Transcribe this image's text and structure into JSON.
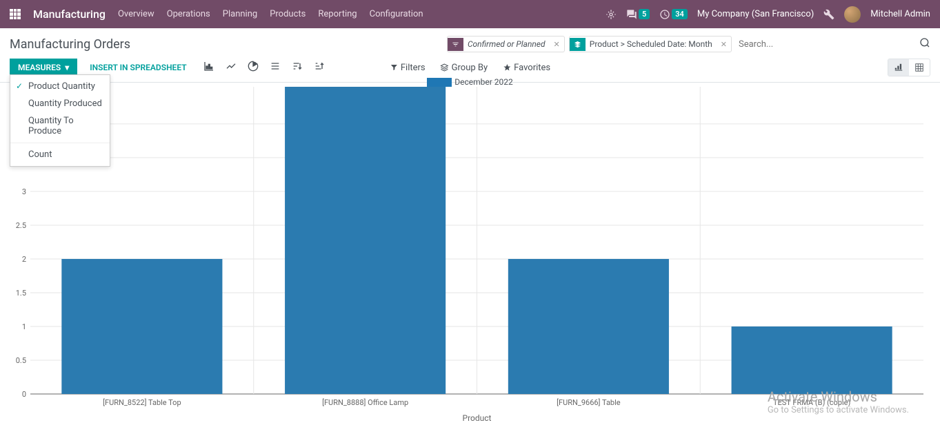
{
  "navbar": {
    "app_title": "Manufacturing",
    "menu": [
      "Overview",
      "Operations",
      "Planning",
      "Products",
      "Reporting",
      "Configuration"
    ],
    "chat_badge": "5",
    "activity_badge": "34",
    "company": "My Company (San Francisco)",
    "user": "Mitchell Admin"
  },
  "page_title": "Manufacturing Orders",
  "search": {
    "facet_filter": "Confirmed or Planned",
    "facet_group": "Product > Scheduled Date: Month",
    "placeholder": "Search..."
  },
  "toolbar": {
    "measures_label": "MEASURES",
    "insert_label": "INSERT IN SPREADSHEET",
    "filters_label": "Filters",
    "groupby_label": "Group By",
    "favorites_label": "Favorites"
  },
  "measures_dropdown": {
    "items": [
      {
        "label": "Product Quantity",
        "checked": true
      },
      {
        "label": "Quantity Produced",
        "checked": false
      },
      {
        "label": "Quantity To Produce",
        "checked": false
      }
    ],
    "count_label": "Count"
  },
  "chart": {
    "type": "bar",
    "legend_label": "December 2022",
    "legend_color": "#1f77b4",
    "bar_color": "#2b7bb0",
    "categories": [
      "[FURN_8522] Table Top",
      "[FURN_8888] Office Lamp",
      "[FURN_9666] Table",
      "TEST FRMA (B) (copie)"
    ],
    "values": [
      2,
      4.55,
      2,
      1
    ],
    "ylim": [
      0,
      4.55
    ],
    "ytick_step": 0.5,
    "yticks": [
      0,
      0.5,
      1,
      1.5,
      2,
      2.5,
      3,
      3.5,
      4
    ],
    "xlabel": "Product",
    "grid_color": "#e6e6e6",
    "axis_color": "#666666",
    "tick_fontsize": 11,
    "label_fontsize": 12,
    "background_color": "#ffffff"
  },
  "watermark": {
    "title": "Activate Windows",
    "subtitle": "Go to Settings to activate Windows."
  }
}
